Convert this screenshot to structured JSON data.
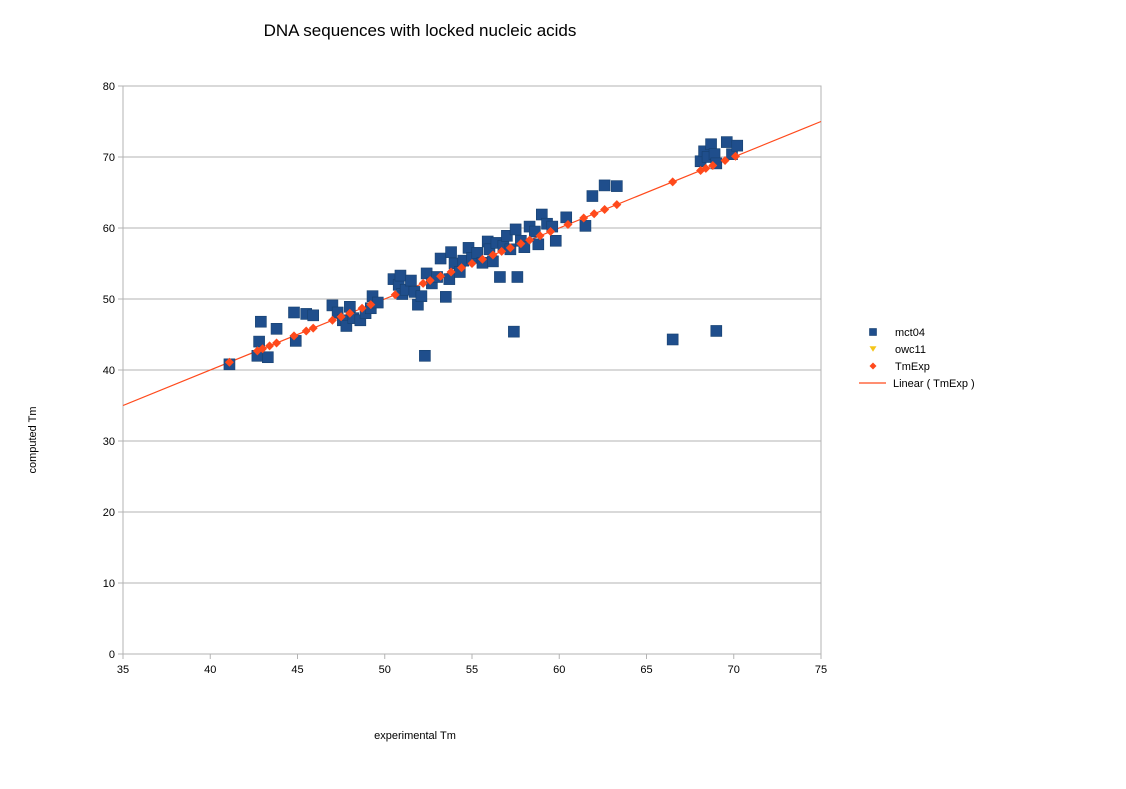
{
  "chart_data": {
    "type": "scatter",
    "title": "DNA sequences with locked nucleic acids",
    "xlabel": "experimental Tm",
    "ylabel": "computed Tm",
    "xlim": [
      35,
      75
    ],
    "ylim": [
      0,
      80
    ],
    "xticks": [
      "35",
      "40",
      "45",
      "50",
      "55",
      "60",
      "65",
      "70",
      "75"
    ],
    "yticks": [
      "0",
      "10",
      "20",
      "30",
      "40",
      "50",
      "60",
      "70",
      "80"
    ],
    "grid": "horizontal",
    "legend_position": "right",
    "series": [
      {
        "name": "mct04",
        "marker": "square",
        "color": "#1f4e8c",
        "points": [
          [
            41.1,
            40.8
          ],
          [
            42.7,
            42.0
          ],
          [
            42.8,
            44.0
          ],
          [
            42.9,
            46.8
          ],
          [
            43.3,
            41.8
          ],
          [
            43.8,
            45.8
          ],
          [
            44.8,
            48.1
          ],
          [
            44.9,
            44.1
          ],
          [
            45.5,
            47.9
          ],
          [
            45.9,
            47.7
          ],
          [
            47.0,
            49.1
          ],
          [
            47.3,
            48.1
          ],
          [
            47.6,
            47.0
          ],
          [
            47.8,
            46.2
          ],
          [
            48.0,
            48.9
          ],
          [
            48.2,
            47.3
          ],
          [
            48.6,
            47.0
          ],
          [
            48.9,
            48.0
          ],
          [
            49.2,
            48.7
          ],
          [
            49.3,
            50.4
          ],
          [
            49.6,
            49.5
          ],
          [
            50.5,
            52.8
          ],
          [
            50.8,
            52.0
          ],
          [
            50.9,
            53.3
          ],
          [
            51.0,
            50.7
          ],
          [
            51.2,
            51.3
          ],
          [
            51.5,
            52.6
          ],
          [
            51.7,
            51.0
          ],
          [
            51.9,
            49.2
          ],
          [
            52.1,
            50.4
          ],
          [
            52.3,
            42.0
          ],
          [
            52.4,
            53.6
          ],
          [
            52.7,
            52.2
          ],
          [
            53.0,
            53.1
          ],
          [
            53.2,
            55.7
          ],
          [
            53.5,
            50.3
          ],
          [
            53.7,
            52.8
          ],
          [
            53.8,
            56.6
          ],
          [
            54.0,
            55.0
          ],
          [
            54.3,
            53.8
          ],
          [
            54.5,
            55.4
          ],
          [
            54.8,
            57.2
          ],
          [
            55.0,
            55.8
          ],
          [
            55.3,
            56.5
          ],
          [
            55.6,
            55.1
          ],
          [
            55.9,
            58.1
          ],
          [
            56.0,
            57.0
          ],
          [
            56.2,
            55.3
          ],
          [
            56.4,
            57.9
          ],
          [
            56.6,
            53.1
          ],
          [
            56.8,
            57.5
          ],
          [
            57.0,
            58.9
          ],
          [
            57.2,
            57.0
          ],
          [
            57.4,
            45.4
          ],
          [
            57.5,
            59.8
          ],
          [
            57.6,
            53.1
          ],
          [
            57.8,
            58.2
          ],
          [
            58.0,
            57.3
          ],
          [
            58.3,
            60.2
          ],
          [
            58.6,
            59.5
          ],
          [
            58.8,
            57.7
          ],
          [
            59.0,
            61.9
          ],
          [
            59.3,
            60.6
          ],
          [
            59.6,
            60.2
          ],
          [
            59.8,
            58.2
          ],
          [
            60.4,
            61.5
          ],
          [
            61.5,
            60.3
          ],
          [
            61.9,
            64.5
          ],
          [
            62.6,
            66.0
          ],
          [
            63.3,
            65.9
          ],
          [
            66.5,
            44.3
          ],
          [
            68.1,
            69.4
          ],
          [
            68.3,
            70.8
          ],
          [
            68.5,
            70.0
          ],
          [
            68.7,
            71.8
          ],
          [
            68.9,
            70.4
          ],
          [
            69.0,
            69.1
          ],
          [
            69.0,
            45.5
          ],
          [
            69.6,
            72.1
          ],
          [
            69.9,
            70.4
          ],
          [
            70.2,
            71.6
          ]
        ]
      },
      {
        "name": "owc11",
        "marker": "triangle-down",
        "color": "#f5c518",
        "points": []
      },
      {
        "name": "TmExp",
        "marker": "diamond",
        "color": "#ff4a1c",
        "points": [
          [
            41.1,
            41.1
          ],
          [
            42.7,
            42.7
          ],
          [
            43.0,
            43.0
          ],
          [
            43.4,
            43.4
          ],
          [
            43.8,
            43.8
          ],
          [
            44.8,
            44.8
          ],
          [
            45.5,
            45.5
          ],
          [
            45.9,
            45.9
          ],
          [
            47.0,
            47.0
          ],
          [
            47.5,
            47.5
          ],
          [
            48.0,
            48.0
          ],
          [
            48.7,
            48.7
          ],
          [
            49.2,
            49.2
          ],
          [
            50.6,
            50.6
          ],
          [
            52.2,
            52.2
          ],
          [
            52.6,
            52.6
          ],
          [
            53.2,
            53.2
          ],
          [
            53.8,
            53.8
          ],
          [
            54.4,
            54.4
          ],
          [
            55.0,
            55.0
          ],
          [
            55.6,
            55.6
          ],
          [
            56.2,
            56.2
          ],
          [
            56.7,
            56.7
          ],
          [
            57.2,
            57.2
          ],
          [
            57.8,
            57.8
          ],
          [
            58.3,
            58.3
          ],
          [
            58.9,
            58.9
          ],
          [
            59.5,
            59.5
          ],
          [
            60.5,
            60.5
          ],
          [
            61.4,
            61.4
          ],
          [
            62.0,
            62.0
          ],
          [
            62.6,
            62.6
          ],
          [
            63.3,
            63.3
          ],
          [
            66.5,
            66.5
          ],
          [
            68.1,
            68.1
          ],
          [
            68.4,
            68.4
          ],
          [
            68.8,
            68.8
          ],
          [
            69.5,
            69.5
          ],
          [
            70.1,
            70.1
          ]
        ]
      }
    ],
    "trendline": {
      "name": "Linear ( TmExp )",
      "color": "#ff4a1c",
      "x": [
        35,
        75
      ],
      "y": [
        35,
        75
      ]
    }
  }
}
